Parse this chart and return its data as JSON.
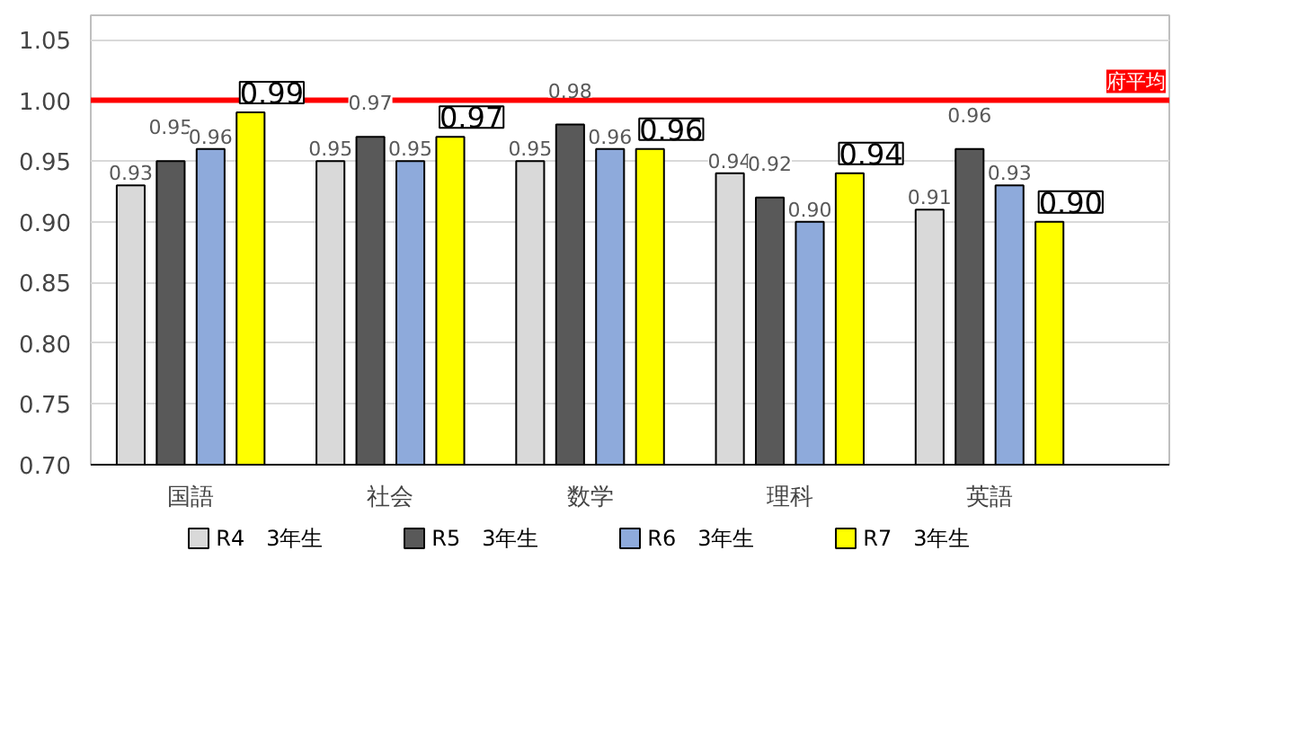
{
  "chart_data": {
    "type": "bar",
    "categories": [
      "国語",
      "社会",
      "数学",
      "理科",
      "英語"
    ],
    "series": [
      {
        "name": "R4　3年生",
        "color": "#d9d9d9",
        "values": [
          0.93,
          0.95,
          0.95,
          0.94,
          0.91
        ],
        "value_labels": [
          "0.93",
          "0.95",
          "0.95",
          "0.94",
          "0.91"
        ]
      },
      {
        "name": "R5　3年生",
        "color": "#595959",
        "values": [
          0.95,
          0.97,
          0.98,
          0.92,
          0.96
        ],
        "value_labels": [
          "0.95",
          "0.97",
          "0.98",
          "0.92",
          "0.96"
        ]
      },
      {
        "name": "R6　3年生",
        "color": "#8eaadb",
        "values": [
          0.96,
          0.95,
          0.96,
          0.9,
          0.93
        ],
        "value_labels": [
          "0.96",
          "0.95",
          "0.96",
          "0.90",
          "0.93"
        ]
      },
      {
        "name": "R7　3年生",
        "color": "#ffff00",
        "values": [
          0.99,
          0.97,
          0.96,
          0.94,
          0.9
        ],
        "value_labels": [
          "0.99",
          "0.97",
          "0.96",
          "0.94",
          "0.90"
        ]
      }
    ],
    "ylim": [
      0.7,
      1.07
    ],
    "yticks": [
      {
        "value": 0.7,
        "label": "0.70"
      },
      {
        "value": 0.75,
        "label": "0.75"
      },
      {
        "value": 0.8,
        "label": "0.80"
      },
      {
        "value": 0.85,
        "label": "0.85"
      },
      {
        "value": 0.9,
        "label": "0.90"
      },
      {
        "value": 0.95,
        "label": "0.95"
      },
      {
        "value": 1.0,
        "label": "1.00"
      },
      {
        "value": 1.05,
        "label": "1.05"
      }
    ],
    "ref_lines": [
      {
        "axis": "y",
        "value": 1.0,
        "label": "府平均",
        "color": "#ff0000"
      }
    ],
    "grid": "y",
    "legend": "bottom"
  }
}
